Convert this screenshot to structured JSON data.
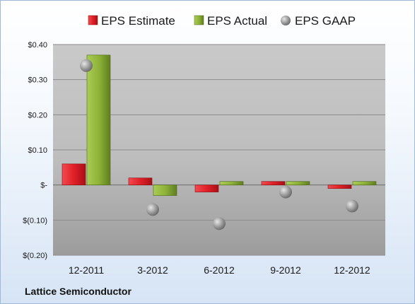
{
  "chart_data": {
    "type": "bar",
    "title": "",
    "company": "Lattice Semiconductor",
    "categories": [
      "12-2011",
      "3-2012",
      "6-2012",
      "9-2012",
      "12-2012"
    ],
    "series": [
      {
        "name": "EPS Estimate",
        "kind": "bar",
        "color": "#d81f26",
        "values": [
          0.06,
          0.02,
          -0.02,
          0.01,
          -0.01
        ]
      },
      {
        "name": "EPS Actual",
        "kind": "bar",
        "color": "#8fb339",
        "values": [
          0.37,
          -0.03,
          0.01,
          0.01,
          0.01
        ]
      },
      {
        "name": "EPS GAAP",
        "kind": "marker",
        "color": "#9a9a9a",
        "values": [
          0.34,
          -0.07,
          -0.11,
          -0.02,
          -0.06
        ]
      }
    ],
    "yticks": [
      0.4,
      0.3,
      0.2,
      0.1,
      0,
      -0.1,
      -0.2
    ],
    "ytick_labels": [
      "$0.40",
      "$0.30",
      "$0.20",
      "$0.10",
      "$-",
      "$(0.10)",
      "$(0.20)"
    ],
    "ylim": [
      -0.2,
      0.4
    ],
    "grid": true,
    "legend": "top"
  }
}
